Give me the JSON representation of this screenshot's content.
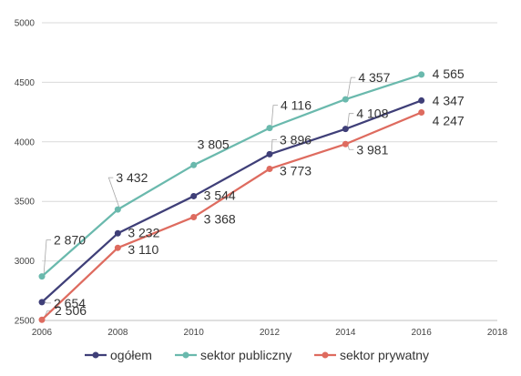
{
  "chart_data": {
    "type": "line",
    "title": "",
    "xlabel": "",
    "ylabel": "",
    "xlim": [
      2006,
      2018
    ],
    "ylim": [
      2500,
      5000
    ],
    "x_ticks": [
      2006,
      2008,
      2010,
      2012,
      2014,
      2016,
      2018
    ],
    "y_ticks": [
      2500,
      3000,
      3500,
      4000,
      4500,
      5000
    ],
    "x_tick_labels": [
      "2006",
      "2008",
      "2010",
      "2012",
      "2014",
      "2016",
      "2018"
    ],
    "y_tick_labels": [
      "2500",
      "3000",
      "3500",
      "4000",
      "4500",
      "5000"
    ],
    "grid": "horizontal",
    "legend_position": "bottom",
    "x": [
      2006,
      2008,
      2010,
      2012,
      2014,
      2016
    ],
    "series": [
      {
        "name": "ogółem",
        "color": "#3f3f78",
        "values": [
          2654,
          3232,
          3544,
          3896,
          4108,
          4347
        ],
        "labels": [
          "2 654",
          "3 232",
          "3 544",
          "3 896",
          "4 108",
          "4 347"
        ]
      },
      {
        "name": "sektor publiczny",
        "color": "#6ab9ad",
        "values": [
          2870,
          3432,
          3805,
          4116,
          4357,
          4565
        ],
        "labels": [
          "2 870",
          "3 432",
          "3 805",
          "4 116",
          "4 357",
          "4 565"
        ]
      },
      {
        "name": "sektor prywatny",
        "color": "#de6b5f",
        "values": [
          2506,
          3110,
          3368,
          3773,
          3981,
          4247
        ],
        "labels": [
          "2 506",
          "3 110",
          "3 368",
          "3 773",
          "3 981",
          "4 247"
        ]
      }
    ]
  }
}
